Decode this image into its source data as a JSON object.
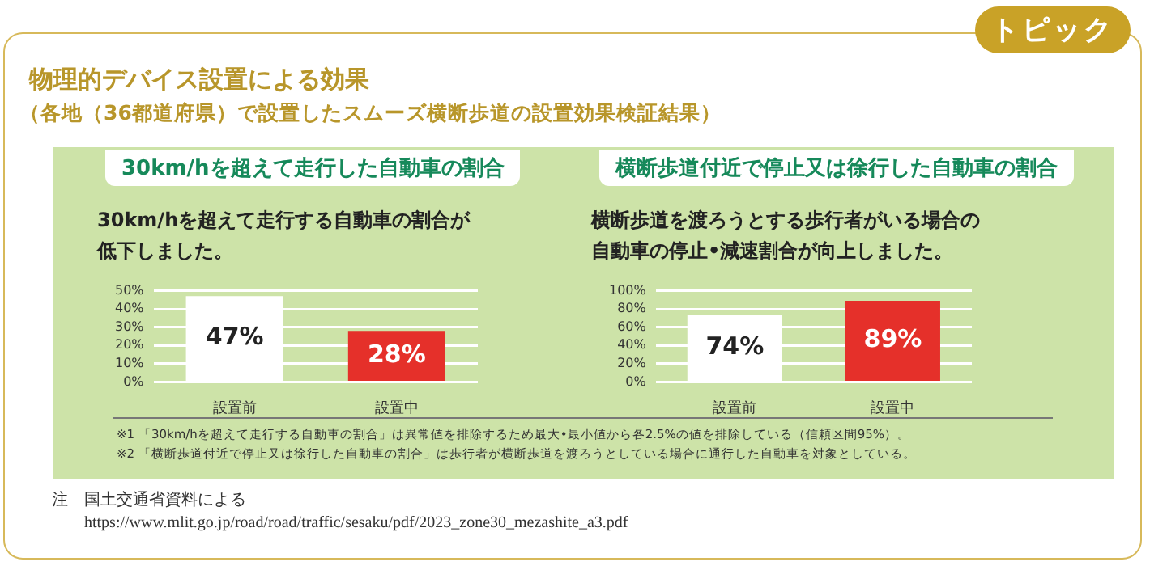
{
  "chart_data": [
    {
      "type": "bar",
      "title": "30km/hを超えて走行した自動車の割合",
      "subtitle": "30km/hを超えて走行する自動車の割合が低下しました。",
      "categories": [
        "設置前",
        "設置中"
      ],
      "values": [
        47,
        28
      ],
      "colors": [
        "#ffffff",
        "#e5302a"
      ],
      "value_labels": [
        "47%",
        "28%"
      ],
      "ylim": [
        0,
        50
      ],
      "yticks": [
        {
          "value": 0,
          "label": "0%"
        },
        {
          "value": 10,
          "label": "10%"
        },
        {
          "value": 20,
          "label": "20%"
        },
        {
          "value": 30,
          "label": "30%"
        },
        {
          "value": 40,
          "label": "40%"
        },
        {
          "value": 50,
          "label": "50%"
        }
      ],
      "grid": "y",
      "annotations": [
        "トピック",
        "物理的デバイス設置による効果",
        "（各地（36都道府県）で設置したスムーズ横断歩道の設置効果検証結果）"
      ]
    },
    {
      "type": "bar",
      "title": "横断歩道付近で停止又は徐行した自動車の割合",
      "subtitle": "横断歩道を渡ろうとする歩行者がいる場合の自動車の停止•減速割合が向上しました。",
      "categories": [
        "設置前",
        "設置中"
      ],
      "values": [
        74,
        89
      ],
      "colors": [
        "#ffffff",
        "#e5302a"
      ],
      "value_labels": [
        "74%",
        "89%"
      ],
      "ylim": [
        0,
        100
      ],
      "yticks": [
        {
          "value": 0,
          "label": "0%"
        },
        {
          "value": 20,
          "label": "20%"
        },
        {
          "value": 40,
          "label": "40%"
        },
        {
          "value": 60,
          "label": "60%"
        },
        {
          "value": 80,
          "label": "80%"
        },
        {
          "value": 100,
          "label": "100%"
        }
      ],
      "grid": "y",
      "annotations": [
        "※1 「30km/hを超えて走行する自動車の割合」は異常値を排除するため最大•最小値から各2.5%の値を排除している（信頼区間95%）。",
        "※2 「横断歩道付近で停止又は徐行した自動車の割合」は歩行者が横断歩道を渡ろうとしている場合に通行した自動車を対象としている。",
        "注　国土交通省資料による",
        "https://www.mlit.go.jp/road/road/traffic/sesaku/pdf/2023_zone30_mezashite_a3.pdf"
      ]
    }
  ]
}
